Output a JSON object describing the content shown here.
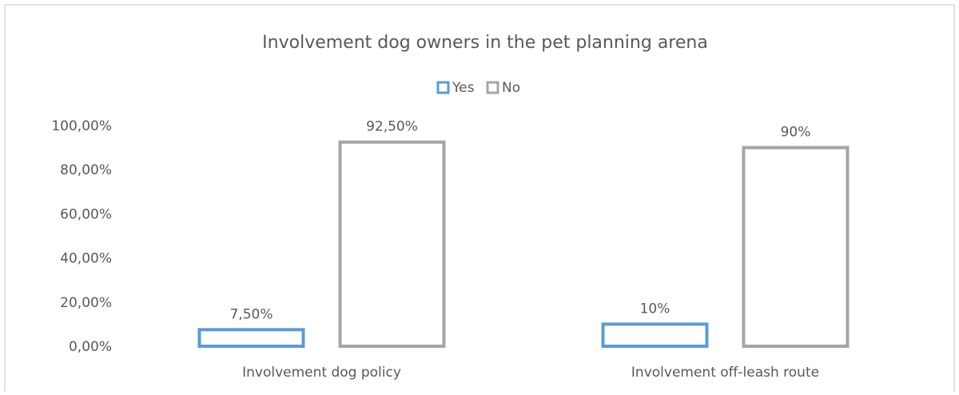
{
  "chart_data": {
    "type": "bar",
    "title": "Involvement dog owners in the pet planning arena",
    "xlabel": "",
    "ylabel": "",
    "ylim": [
      0,
      100
    ],
    "yticks": [
      0,
      20,
      40,
      60,
      80,
      100
    ],
    "ytick_labels": [
      "0,00%",
      "20,00%",
      "40,00%",
      "60,00%",
      "80,00%",
      "100,00%"
    ],
    "categories": [
      "Involvement dog policy",
      "Involvement off-leash route"
    ],
    "series": [
      {
        "name": "Yes",
        "color": "#5b9bd5",
        "values": [
          7.5,
          10
        ],
        "labels": [
          "7,50%",
          "10%"
        ]
      },
      {
        "name": "No",
        "color": "#a5a5a5",
        "values": [
          92.5,
          90
        ],
        "labels": [
          "92,50%",
          "90%"
        ]
      }
    ],
    "legend_position": "top-center",
    "grid": false
  }
}
